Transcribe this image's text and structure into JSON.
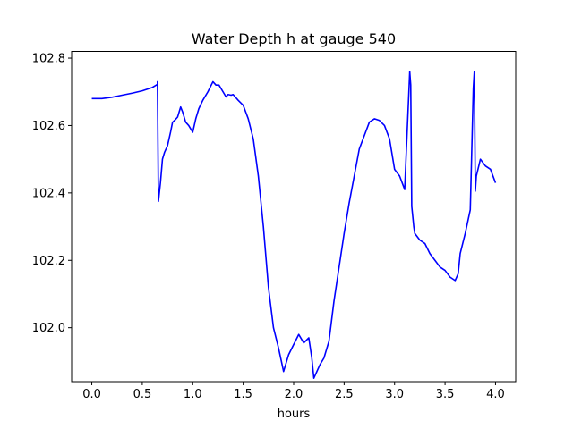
{
  "chart_data": {
    "type": "line",
    "title": "Water Depth h at gauge 540",
    "xlabel": "hours",
    "ylabel": "",
    "xlim": [
      -0.2,
      4.2
    ],
    "ylim": [
      101.84,
      102.82
    ],
    "xticks": [
      0.0,
      0.5,
      1.0,
      1.5,
      2.0,
      2.5,
      3.0,
      3.5,
      4.0
    ],
    "xtick_labels": [
      "0.0",
      "0.5",
      "1.0",
      "1.5",
      "2.0",
      "2.5",
      "3.0",
      "3.5",
      "4.0"
    ],
    "yticks": [
      102.0,
      102.2,
      102.4,
      102.6,
      102.8
    ],
    "ytick_labels": [
      "102.0",
      "102.2",
      "102.4",
      "102.6",
      "102.8"
    ],
    "grid": false,
    "line_color": "#0000ff",
    "series": [
      {
        "x": [
          0.0,
          0.1,
          0.2,
          0.3,
          0.4,
          0.5,
          0.6,
          0.65,
          0.65,
          0.66,
          0.68,
          0.7,
          0.72,
          0.75,
          0.78,
          0.8,
          0.82,
          0.85,
          0.88,
          0.9,
          0.93,
          0.96,
          1.0,
          1.03,
          1.06,
          1.1,
          1.15,
          1.2,
          1.23,
          1.26,
          1.3,
          1.33,
          1.35,
          1.38,
          1.4,
          1.45,
          1.5,
          1.55,
          1.6,
          1.65,
          1.7,
          1.75,
          1.8,
          1.85,
          1.9,
          1.95,
          2.0,
          2.05,
          2.1,
          2.15,
          2.18,
          2.2,
          2.23,
          2.26,
          2.3,
          2.35,
          2.4,
          2.45,
          2.5,
          2.55,
          2.6,
          2.65,
          2.7,
          2.75,
          2.8,
          2.85,
          2.9,
          2.95,
          3.0,
          3.05,
          3.1,
          3.15,
          3.16,
          3.17,
          3.19,
          3.2,
          3.25,
          3.3,
          3.35,
          3.4,
          3.45,
          3.5,
          3.55,
          3.6,
          3.63,
          3.65,
          3.7,
          3.75,
          3.78,
          3.79,
          3.8,
          3.81,
          3.85,
          3.9,
          3.95,
          4.0
        ],
        "y": [
          102.68,
          102.68,
          102.684,
          102.69,
          102.696,
          102.703,
          102.713,
          102.722,
          102.73,
          102.375,
          102.43,
          102.5,
          102.52,
          102.54,
          102.58,
          102.61,
          102.615,
          102.625,
          102.655,
          102.64,
          102.61,
          102.6,
          102.58,
          102.62,
          102.65,
          102.675,
          102.7,
          102.73,
          102.72,
          102.72,
          102.7,
          102.685,
          102.692,
          102.69,
          102.692,
          102.675,
          102.66,
          102.62,
          102.56,
          102.45,
          102.3,
          102.12,
          102.0,
          101.94,
          101.87,
          101.92,
          101.95,
          101.98,
          101.955,
          101.97,
          101.91,
          101.85,
          101.87,
          101.89,
          101.91,
          101.96,
          102.08,
          102.18,
          102.28,
          102.37,
          102.45,
          102.53,
          102.57,
          102.61,
          102.62,
          102.615,
          102.6,
          102.56,
          102.47,
          102.45,
          102.41,
          102.76,
          102.72,
          102.36,
          102.3,
          102.28,
          102.26,
          102.25,
          102.22,
          102.2,
          102.18,
          102.17,
          102.15,
          102.14,
          102.16,
          102.22,
          102.28,
          102.35,
          102.71,
          102.76,
          102.405,
          102.45,
          102.5,
          102.48,
          102.47,
          102.43
        ]
      }
    ]
  }
}
